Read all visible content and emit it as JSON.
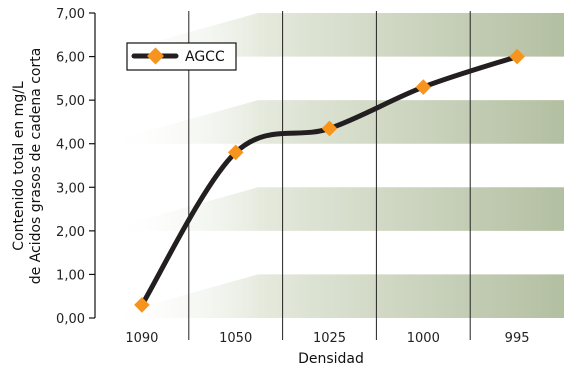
{
  "chart_data": {
    "type": "line",
    "title": "",
    "xlabel": "Densidad",
    "ylabel_lines": [
      "Contenido total en mg/L",
      "de Acidos grasos de cadena corta"
    ],
    "categories": [
      "1090",
      "1050",
      "1025",
      "1000",
      "995"
    ],
    "y_ticks": [
      "0,00",
      "1,00",
      "2,00",
      "3,00",
      "4,00",
      "5,00",
      "6,00",
      "7,00"
    ],
    "ylim": [
      0,
      7
    ],
    "series": [
      {
        "name": "AGCC",
        "values": [
          0.3,
          3.8,
          4.35,
          5.3,
          6.0
        ]
      }
    ],
    "legend_position": "top-left",
    "grid": false,
    "colors": {
      "line": "#231f20",
      "marker": "#f7941d",
      "band": "#b5c1a4",
      "separator": "#222222"
    }
  }
}
